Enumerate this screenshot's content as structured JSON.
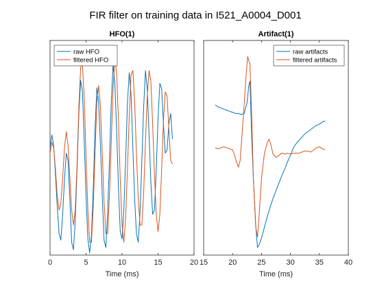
{
  "figure": {
    "title": "FIR filter on training data in I521_A0004_D001"
  },
  "colors": {
    "raw": "#0072BD",
    "filtered": "#D95319"
  },
  "chart_data": [
    {
      "type": "line",
      "title": "HFO(1)",
      "xlabel": "Time (ms)",
      "ylabel": "",
      "xlim": [
        0,
        20
      ],
      "ylim": [
        -1.0,
        1.0
      ],
      "xticks": [
        "0",
        "5",
        "10",
        "15",
        "20"
      ],
      "yticks": [],
      "legend": "top-left",
      "series": [
        {
          "name": "raw HFO",
          "x": [
            0,
            0.25,
            0.5,
            0.75,
            1,
            1.25,
            1.5,
            1.75,
            2,
            2.25,
            2.5,
            2.75,
            3,
            3.25,
            3.5,
            3.75,
            4,
            4.25,
            4.5,
            4.75,
            5,
            5.25,
            5.5,
            5.75,
            6,
            6.25,
            6.5,
            6.75,
            7,
            7.25,
            7.5,
            7.75,
            8,
            8.25,
            8.5,
            8.75,
            9,
            9.25,
            9.5,
            9.75,
            10,
            10.25,
            10.5,
            10.75,
            11,
            11.25,
            11.5,
            11.75,
            12,
            12.25,
            12.5,
            12.75,
            13,
            13.25,
            13.5,
            13.75,
            14,
            14.25,
            14.5,
            14.75,
            15,
            15.25,
            15.5,
            15.75,
            16,
            16.25,
            16.5,
            16.75,
            17
          ],
          "y": [
            0.0,
            0.12,
            0.02,
            -0.25,
            -0.55,
            -0.8,
            -0.86,
            -0.62,
            -0.3,
            -0.05,
            -0.12,
            -0.48,
            -0.88,
            -0.95,
            -0.68,
            -0.2,
            0.32,
            0.63,
            0.52,
            0.05,
            -0.45,
            -0.85,
            -0.98,
            -0.82,
            -0.38,
            0.18,
            0.56,
            0.42,
            0.02,
            -0.45,
            -0.86,
            -0.93,
            -0.6,
            -0.12,
            0.42,
            0.78,
            0.6,
            0.15,
            -0.38,
            -0.78,
            -0.85,
            -0.58,
            -0.1,
            0.42,
            0.7,
            0.5,
            0.0,
            -0.48,
            -0.8,
            -0.88,
            -0.6,
            -0.12,
            0.38,
            0.72,
            0.55,
            0.12,
            -0.32,
            -0.62,
            -0.58,
            -0.2,
            0.28,
            0.6,
            0.55,
            0.22,
            -0.05,
            -0.02,
            0.22,
            0.32,
            0.08
          ]
        },
        {
          "name": "filtered HFO",
          "x": [
            0,
            0.25,
            0.5,
            0.75,
            1,
            1.25,
            1.5,
            1.75,
            2,
            2.25,
            2.5,
            2.75,
            3,
            3.25,
            3.5,
            3.75,
            4,
            4.25,
            4.5,
            4.75,
            5,
            5.25,
            5.5,
            5.75,
            6,
            6.25,
            6.5,
            6.75,
            7,
            7.25,
            7.5,
            7.75,
            8,
            8.25,
            8.5,
            8.75,
            9,
            9.25,
            9.5,
            9.75,
            10,
            10.25,
            10.5,
            10.75,
            11,
            11.25,
            11.5,
            11.75,
            12,
            12.25,
            12.5,
            12.75,
            13,
            13.25,
            13.5,
            13.75,
            14,
            14.25,
            14.5,
            14.75,
            15,
            15.25,
            15.5,
            15.75,
            16,
            16.25,
            16.5,
            16.75,
            17
          ],
          "y": [
            -0.05,
            0.05,
            0.0,
            -0.2,
            -0.45,
            -0.58,
            -0.52,
            -0.28,
            0.0,
            0.15,
            0.02,
            -0.28,
            -0.58,
            -0.72,
            -0.58,
            -0.15,
            0.38,
            0.75,
            0.78,
            0.45,
            -0.08,
            -0.58,
            -0.88,
            -0.88,
            -0.55,
            -0.05,
            0.42,
            0.58,
            0.38,
            -0.05,
            -0.5,
            -0.8,
            -0.8,
            -0.45,
            0.05,
            0.55,
            0.82,
            0.7,
            0.25,
            -0.3,
            -0.72,
            -0.88,
            -0.65,
            -0.2,
            0.3,
            0.68,
            0.72,
            0.42,
            -0.05,
            -0.48,
            -0.72,
            -0.72,
            -0.42,
            0.05,
            0.48,
            0.72,
            0.62,
            0.22,
            -0.25,
            -0.62,
            -0.78,
            -0.62,
            -0.2,
            0.25,
            0.52,
            0.48,
            0.18,
            -0.12,
            -0.15
          ]
        }
      ]
    },
    {
      "type": "line",
      "title": "Artifact(1)",
      "xlabel": "Time (ms)",
      "ylabel": "",
      "xlim": [
        15,
        40
      ],
      "ylim": [
        -1.0,
        1.0
      ],
      "xticks": [
        "15",
        "20",
        "25",
        "30",
        "35",
        "40"
      ],
      "yticks": [],
      "legend": "top-right",
      "series": [
        {
          "name": "raw artifacts",
          "x": [
            17,
            17.5,
            18,
            18.5,
            19,
            19.5,
            20,
            20.5,
            21,
            21.5,
            22,
            22.5,
            22.8,
            23,
            23.3,
            23.6,
            24,
            24.3,
            24.6,
            25,
            25.5,
            26,
            26.5,
            27,
            27.5,
            28,
            28.5,
            29,
            29.5,
            30,
            30.5,
            31,
            31.5,
            32,
            32.5,
            33,
            33.5,
            34,
            34.5,
            35,
            35.5,
            36
          ],
          "y": [
            0.4,
            0.38,
            0.37,
            0.36,
            0.35,
            0.34,
            0.33,
            0.32,
            0.32,
            0.31,
            0.32,
            0.42,
            0.58,
            0.62,
            0.1,
            -0.3,
            -0.72,
            -0.93,
            -0.9,
            -0.84,
            -0.74,
            -0.64,
            -0.55,
            -0.47,
            -0.4,
            -0.33,
            -0.26,
            -0.2,
            -0.13,
            -0.07,
            0.0,
            0.04,
            0.07,
            0.1,
            0.13,
            0.15,
            0.17,
            0.19,
            0.21,
            0.22,
            0.24,
            0.25
          ]
        },
        {
          "name": "filtered artifacts",
          "x": [
            17,
            17.5,
            18,
            18.5,
            19,
            19.5,
            20,
            20.3,
            20.6,
            21,
            21.3,
            21.6,
            22,
            22.3,
            22.6,
            23,
            23.3,
            23.6,
            24,
            24.3,
            24.6,
            25,
            25.5,
            26,
            26.3,
            26.6,
            27,
            27.5,
            28,
            28.5,
            29,
            29.5,
            30,
            30.5,
            31,
            31.5,
            32,
            32.5,
            33,
            33.5,
            34,
            34.5,
            35,
            35.5,
            36
          ],
          "y": [
            0.0,
            -0.01,
            0.0,
            0.01,
            0.0,
            -0.01,
            -0.02,
            -0.06,
            -0.12,
            -0.18,
            -0.12,
            0.1,
            0.4,
            0.65,
            0.85,
            0.78,
            0.3,
            -0.3,
            -0.74,
            -0.83,
            -0.62,
            -0.28,
            -0.05,
            0.05,
            0.08,
            0.03,
            -0.06,
            -0.09,
            -0.07,
            -0.05,
            -0.06,
            -0.05,
            -0.06,
            -0.05,
            -0.05,
            -0.05,
            -0.04,
            -0.03,
            -0.03,
            -0.04,
            -0.02,
            0.0,
            0.01,
            -0.01,
            -0.02
          ]
        }
      ]
    }
  ]
}
